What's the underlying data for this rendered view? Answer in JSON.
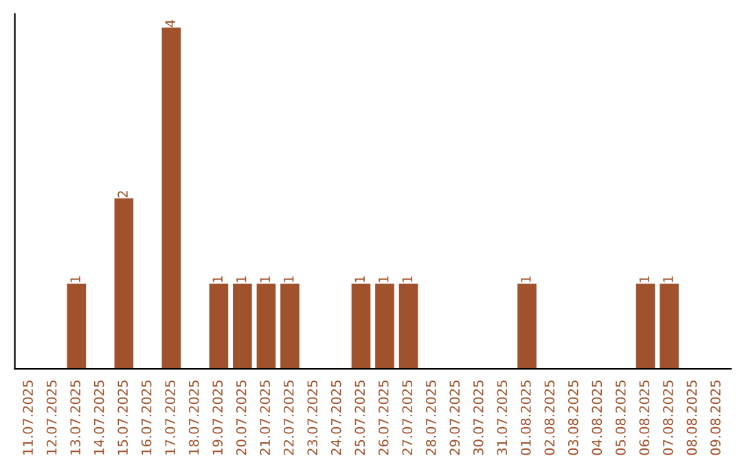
{
  "chart_data": {
    "type": "bar",
    "categories": [
      "11.07.2025",
      "12.07.2025",
      "13.07.2025",
      "14.07.2025",
      "15.07.2025",
      "16.07.2025",
      "17.07.2025",
      "18.07.2025",
      "19.07.2025",
      "20.07.2025",
      "21.07.2025",
      "22.07.2025",
      "23.07.2025",
      "24.07.2025",
      "25.07.2025",
      "26.07.2025",
      "27.07.2025",
      "28.07.2025",
      "29.07.2025",
      "30.07.2025",
      "31.07.2025",
      "01.08.2025",
      "02.08.2025",
      "03.08.2025",
      "04.08.2025",
      "05.08.2025",
      "06.08.2025",
      "07.08.2025",
      "08.08.2025",
      "09.08.2025"
    ],
    "values": [
      null,
      null,
      1,
      null,
      2,
      null,
      4,
      null,
      1,
      1,
      1,
      1,
      null,
      null,
      1,
      1,
      1,
      null,
      null,
      null,
      null,
      1,
      null,
      null,
      null,
      null,
      1,
      1,
      null,
      null
    ],
    "value_labels": [
      null,
      null,
      "1",
      null,
      "2",
      null,
      "4",
      null,
      "1",
      "1",
      "1",
      "1",
      null,
      null,
      "1",
      "1",
      "1",
      null,
      null,
      null,
      null,
      "1",
      null,
      null,
      null,
      null,
      "1",
      "1",
      null,
      null
    ],
    "color": "#a0522d",
    "tick_labels": "x",
    "grid": false
  }
}
